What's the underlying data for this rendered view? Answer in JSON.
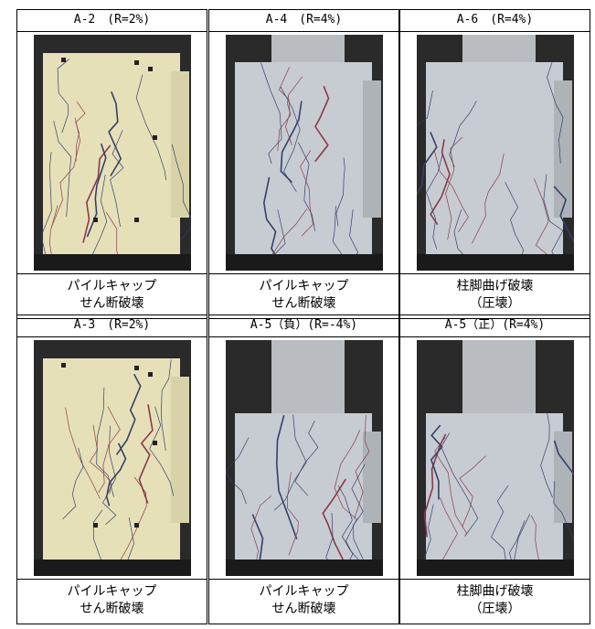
{
  "rows": [
    {
      "cells": [
        {
          "header": "A-2　(R=2%)",
          "caption": [
            "パイルキャップ",
            "せん断破壊"
          ]
        },
        {
          "header": "A-4　(R=4%)",
          "caption": [
            "パイルキャップ",
            "せん断破壊"
          ]
        },
        {
          "header": "A-6　(R=4%)",
          "caption": [
            "柱脚曲げ破壊",
            "（圧壊）"
          ]
        }
      ]
    },
    {
      "cells": [
        {
          "header": "A-3　(R=2%)",
          "caption": [
            "パイルキャップ",
            "せん断破壊"
          ]
        },
        {
          "header": "A-5（負）(R=-4%)",
          "caption": [
            "パイルキャップ",
            "せん断破壊"
          ]
        },
        {
          "header": "A-5（正）(R=4%)",
          "caption": [
            "柱脚曲げ破壊",
            "（圧壊）"
          ]
        }
      ]
    }
  ]
}
